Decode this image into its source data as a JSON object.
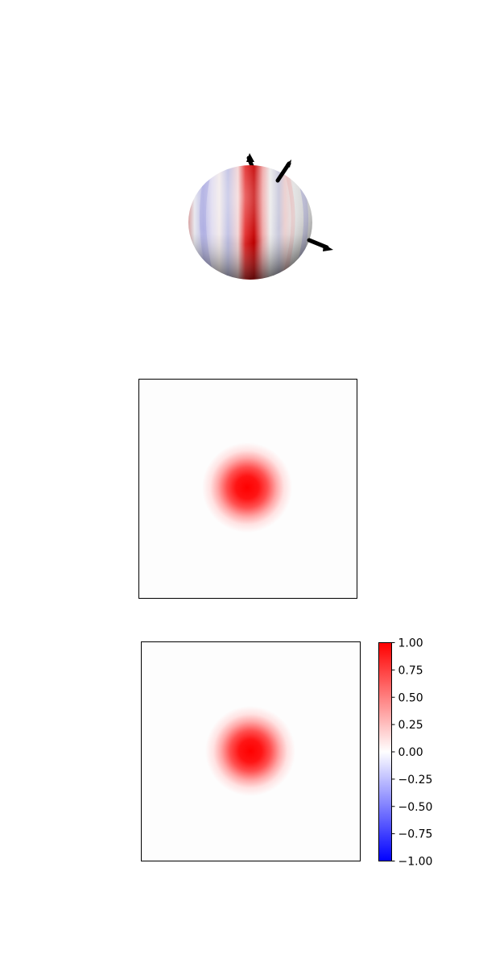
{
  "chart_data": [
    {
      "type": "surface",
      "subtype": "3d-sphere",
      "colormap": "bwr",
      "pattern": "vertical stripes (red and blue) on a white sphere",
      "arrows": 3,
      "title": "",
      "xlabel": "",
      "ylabel": ""
    },
    {
      "type": "heatmap",
      "colormap": "bwr",
      "pattern": "single centered gaussian blob",
      "peak_value": 1.0,
      "background_value": 0.0,
      "axes_ticks": false,
      "colorbar": false,
      "title": "",
      "xlabel": "",
      "ylabel": ""
    },
    {
      "type": "heatmap",
      "colormap": "bwr",
      "pattern": "single centered gaussian blob",
      "peak_value": 1.0,
      "background_value": 0.0,
      "axes_ticks": false,
      "colorbar": true,
      "title": "",
      "xlabel": "",
      "ylabel": ""
    }
  ],
  "colorbar": {
    "range": [
      -1.0,
      1.0
    ],
    "tick_values": [
      1.0,
      0.75,
      0.5,
      0.25,
      0.0,
      -0.25,
      -0.5,
      -0.75,
      -1.0
    ],
    "tick_labels": [
      "1.00",
      "0.75",
      "0.50",
      "0.25",
      "0.00",
      "−0.25",
      "−0.50",
      "−0.75",
      "−1.00"
    ],
    "color_max": "#ff0000",
    "color_mid": "#ffffff",
    "color_min": "#0000ff"
  }
}
